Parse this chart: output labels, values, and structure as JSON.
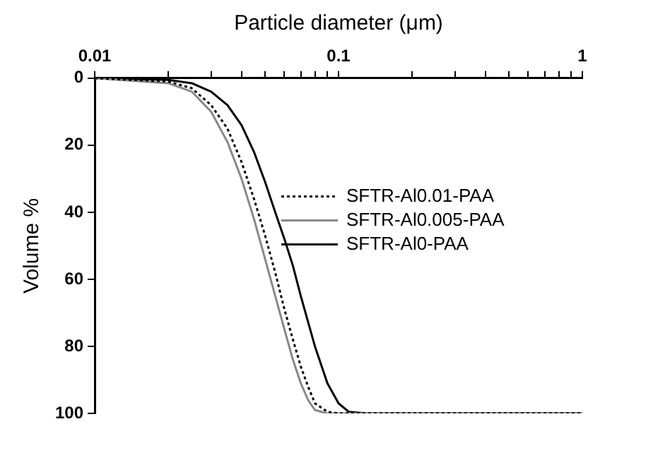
{
  "chart_data": {
    "type": "line",
    "xlabel": "Particle diameter (μm)",
    "ylabel": "Volume %",
    "log": "x",
    "xlim": [
      0.01,
      1
    ],
    "xticks": [
      0.01,
      {
        "value": 0.02,
        "label": null
      },
      {
        "value": 0.03,
        "label": null
      },
      {
        "value": 0.04,
        "label": null
      },
      {
        "value": 0.05,
        "label": null
      },
      {
        "value": 0.06,
        "label": null
      },
      {
        "value": 0.07,
        "label": null
      },
      {
        "value": 0.08,
        "label": null
      },
      {
        "value": 0.09,
        "label": null
      },
      0.1,
      {
        "value": 0.2,
        "label": null
      },
      {
        "value": 0.3,
        "label": null
      },
      {
        "value": 0.4,
        "label": null
      },
      {
        "value": 0.5,
        "label": null
      },
      {
        "value": 0.6,
        "label": null
      },
      {
        "value": 0.7,
        "label": null
      },
      {
        "value": 0.8,
        "label": null
      },
      {
        "value": 0.9,
        "label": null
      },
      1
    ],
    "ylim": [
      100,
      0
    ],
    "yticks": [
      0,
      20,
      40,
      60,
      80,
      100
    ],
    "grid": false,
    "legend": "right",
    "marker": "none",
    "series": [
      {
        "name": "SFTR-Al0.01-PAA",
        "color": "#000000",
        "line_style": "dotted",
        "x": [
          0.01,
          0.02,
          0.025,
          0.03,
          0.035,
          0.04,
          0.045,
          0.05,
          0.055,
          0.06,
          0.065,
          0.07,
          0.075,
          0.08,
          0.09,
          0.1,
          1
        ],
        "values": [
          0,
          1,
          3,
          8,
          15,
          25,
          36,
          47,
          58,
          69,
          78,
          86,
          92,
          97,
          99.5,
          100,
          100
        ]
      },
      {
        "name": "SFTR-Al0.005-PAA",
        "color": "#888888",
        "line_style": "solid",
        "x": [
          0.01,
          0.02,
          0.025,
          0.03,
          0.035,
          0.04,
          0.045,
          0.05,
          0.055,
          0.06,
          0.065,
          0.07,
          0.075,
          0.08,
          0.09,
          1
        ],
        "values": [
          0,
          1.5,
          4,
          10,
          19,
          30,
          42,
          54,
          65,
          75,
          84,
          91,
          96,
          99,
          100,
          100
        ]
      },
      {
        "name": "SFTR-Al0-PAA",
        "color": "#000000",
        "line_style": "solid",
        "x": [
          0.01,
          0.02,
          0.025,
          0.03,
          0.035,
          0.04,
          0.045,
          0.05,
          0.055,
          0.06,
          0.065,
          0.07,
          0.08,
          0.09,
          0.1,
          0.11,
          0.13,
          1
        ],
        "values": [
          0,
          0.5,
          1.5,
          4,
          8,
          14,
          22,
          31,
          40,
          48,
          56,
          65,
          80,
          91,
          97,
          99.5,
          100,
          100
        ]
      }
    ]
  }
}
